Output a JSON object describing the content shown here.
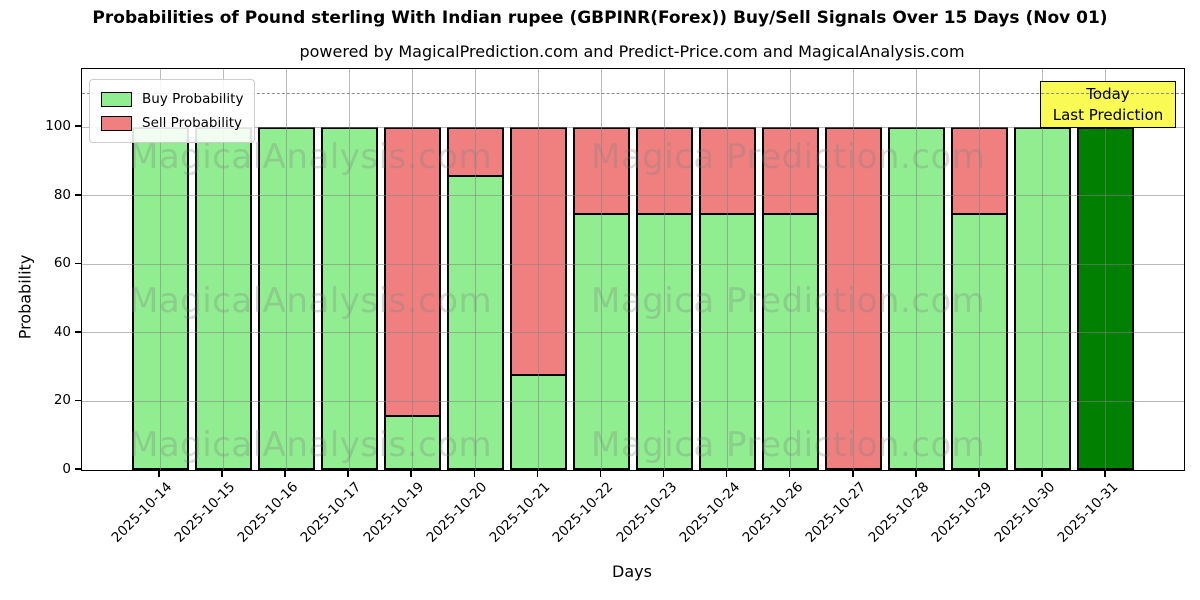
{
  "figure": {
    "title": "Probabilities of Pound sterling With Indian rupee (GBPINR(Forex)) Buy/Sell Signals Over 15 Days (Nov 01)",
    "subtitle": "powered by MagicalPrediction.com and Predict-Price.com and MagicalAnalysis.com"
  },
  "chart_data": {
    "type": "bar",
    "stacked": true,
    "title": "Probabilities of Pound sterling With Indian rupee (GBPINR(Forex)) Buy/Sell Signals Over 15 Days (Nov 01)",
    "subtitle": "powered by MagicalPrediction.com and Predict-Price.com and MagicalAnalysis.com",
    "xlabel": "Days",
    "ylabel": "Probability",
    "categories": [
      "2025-10-14",
      "2025-10-15",
      "2025-10-16",
      "2025-10-17",
      "2025-10-19",
      "2025-10-20",
      "2025-10-21",
      "2025-10-22",
      "2025-10-23",
      "2025-10-24",
      "2025-10-26",
      "2025-10-27",
      "2025-10-28",
      "2025-10-29",
      "2025-10-30",
      "2025-10-31"
    ],
    "series": [
      {
        "name": "Buy Probability",
        "color": "#90ee90",
        "values": [
          100,
          100,
          100,
          100,
          16,
          86,
          28,
          75,
          75,
          75,
          75,
          0,
          100,
          75,
          100,
          100
        ]
      },
      {
        "name": "Sell Probability",
        "color": "#f08080",
        "values": [
          0,
          0,
          0,
          0,
          84,
          14,
          72,
          25,
          25,
          25,
          25,
          100,
          0,
          25,
          0,
          0
        ]
      }
    ],
    "today_index": 15,
    "today_color": "#008000",
    "bar_edge_color": "#000000",
    "yticks": [
      0,
      20,
      40,
      60,
      80,
      100
    ],
    "ylim": [
      0,
      117
    ],
    "dashed_line_y": 110,
    "grid": true,
    "legend_position": "upper-left",
    "xtick_rotation_deg": 45
  },
  "legend": {
    "items": [
      {
        "label": "Buy Probability",
        "color": "#90ee90"
      },
      {
        "label": "Sell Probability",
        "color": "#f08080"
      }
    ]
  },
  "annotation": {
    "line1": "Today",
    "line2": "Last Prediction",
    "bg": "#fafa55"
  },
  "watermarks": {
    "left_text": "MagicalAnalysis.com",
    "right_text": "Magica Prediction.com",
    "rows": 3
  }
}
